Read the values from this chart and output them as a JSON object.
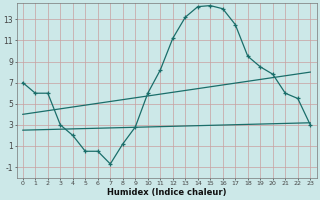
{
  "xlabel": "Humidex (Indice chaleur)",
  "background_color": "#cce8e8",
  "grid_color": "#c8a0a0",
  "line_color": "#1a6e6a",
  "xlim": [
    -0.5,
    23.5
  ],
  "ylim": [
    -2,
    14.5
  ],
  "xticks": [
    0,
    1,
    2,
    3,
    4,
    5,
    6,
    7,
    8,
    9,
    10,
    11,
    12,
    13,
    14,
    15,
    16,
    17,
    18,
    19,
    20,
    21,
    22,
    23
  ],
  "yticks": [
    -1,
    1,
    3,
    5,
    7,
    9,
    11,
    13
  ],
  "line1_x": [
    0,
    1,
    2,
    3,
    4,
    5,
    6,
    7,
    8,
    9,
    10,
    11,
    12,
    13,
    14,
    15,
    16,
    17,
    18,
    19,
    20,
    21,
    22,
    23
  ],
  "line1_y": [
    7.0,
    6.0,
    6.0,
    3.0,
    2.0,
    0.5,
    0.5,
    -0.7,
    1.2,
    2.8,
    6.0,
    8.2,
    11.2,
    13.2,
    14.2,
    14.3,
    14.0,
    12.5,
    9.5,
    8.5,
    7.8,
    6.0,
    5.5,
    3.0
  ],
  "line2_x": [
    0,
    23
  ],
  "line2_y": [
    4.0,
    8.0
  ],
  "line3_x": [
    0,
    23
  ],
  "line3_y": [
    2.5,
    3.2
  ],
  "marker": "+",
  "markersize": 3.5,
  "linewidth": 0.9
}
